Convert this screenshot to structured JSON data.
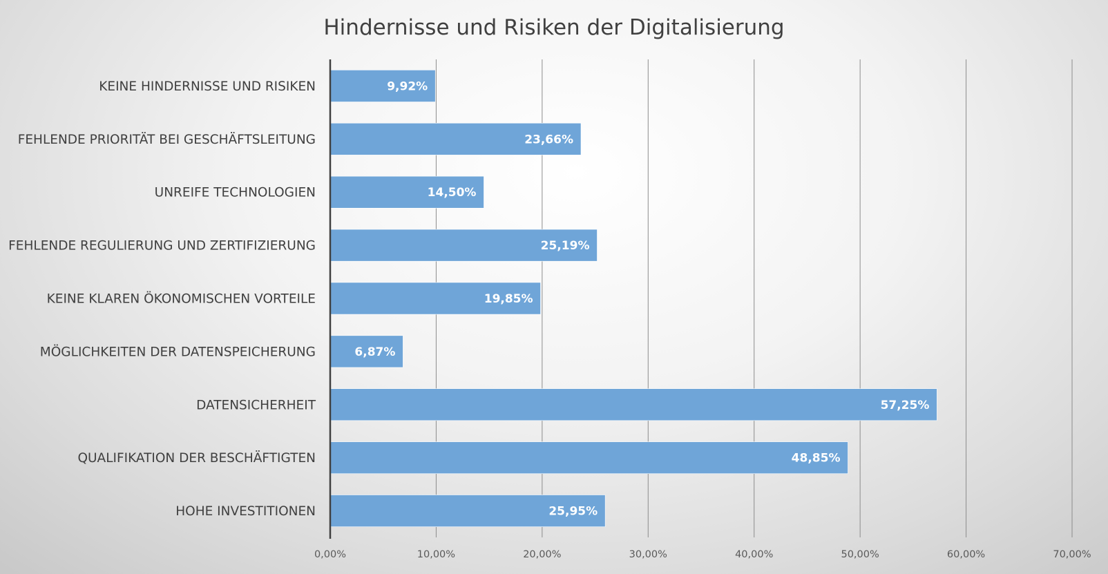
{
  "chart_data": {
    "type": "bar",
    "orientation": "horizontal",
    "title": "Hindernisse und Risiken der Digitalisierung",
    "categories": [
      "KEINE HINDERNISSE UND RISIKEN",
      "FEHLENDE PRIORITÄT BEI GESCHÄFTSLEITUNG",
      "UNREIFE TECHNOLOGIEN",
      "FEHLENDE REGULIERUNG UND ZERTIFIZIERUNG",
      "KEINE KLAREN ÖKONOMISCHEN VORTEILE",
      "MÖGLICHKEITEN DER DATENSPEICHERUNG",
      "DATENSICHERHEIT",
      "QUALIFIKATION DER BESCHÄFTIGTEN",
      "HOHE INVESTITIONEN"
    ],
    "values": [
      9.92,
      23.66,
      14.5,
      25.19,
      19.85,
      6.87,
      57.25,
      48.85,
      25.95
    ],
    "data_labels": [
      "9,92%",
      "23,66%",
      "14,50%",
      "25,19%",
      "19,85%",
      "6,87%",
      "57,25%",
      "48,85%",
      "25,95%"
    ],
    "x_ticks": [
      0,
      10,
      20,
      30,
      40,
      50,
      60,
      70
    ],
    "x_tick_labels": [
      "0,00%",
      "10,00%",
      "20,00%",
      "30,00%",
      "40,00%",
      "50,00%",
      "60,00%",
      "70,00%"
    ],
    "xlim": [
      0,
      70
    ],
    "xlabel": "",
    "ylabel": "",
    "grid": "vertical",
    "legend": "none",
    "colors": {
      "bar": "#6fa5d8",
      "bar_edge": "#ffffff",
      "grid": "#8c8c8c",
      "axis": "#404040",
      "title": "#404040",
      "category_text": "#404040",
      "tick_text": "#595959",
      "data_label_text": "#ffffff"
    }
  }
}
